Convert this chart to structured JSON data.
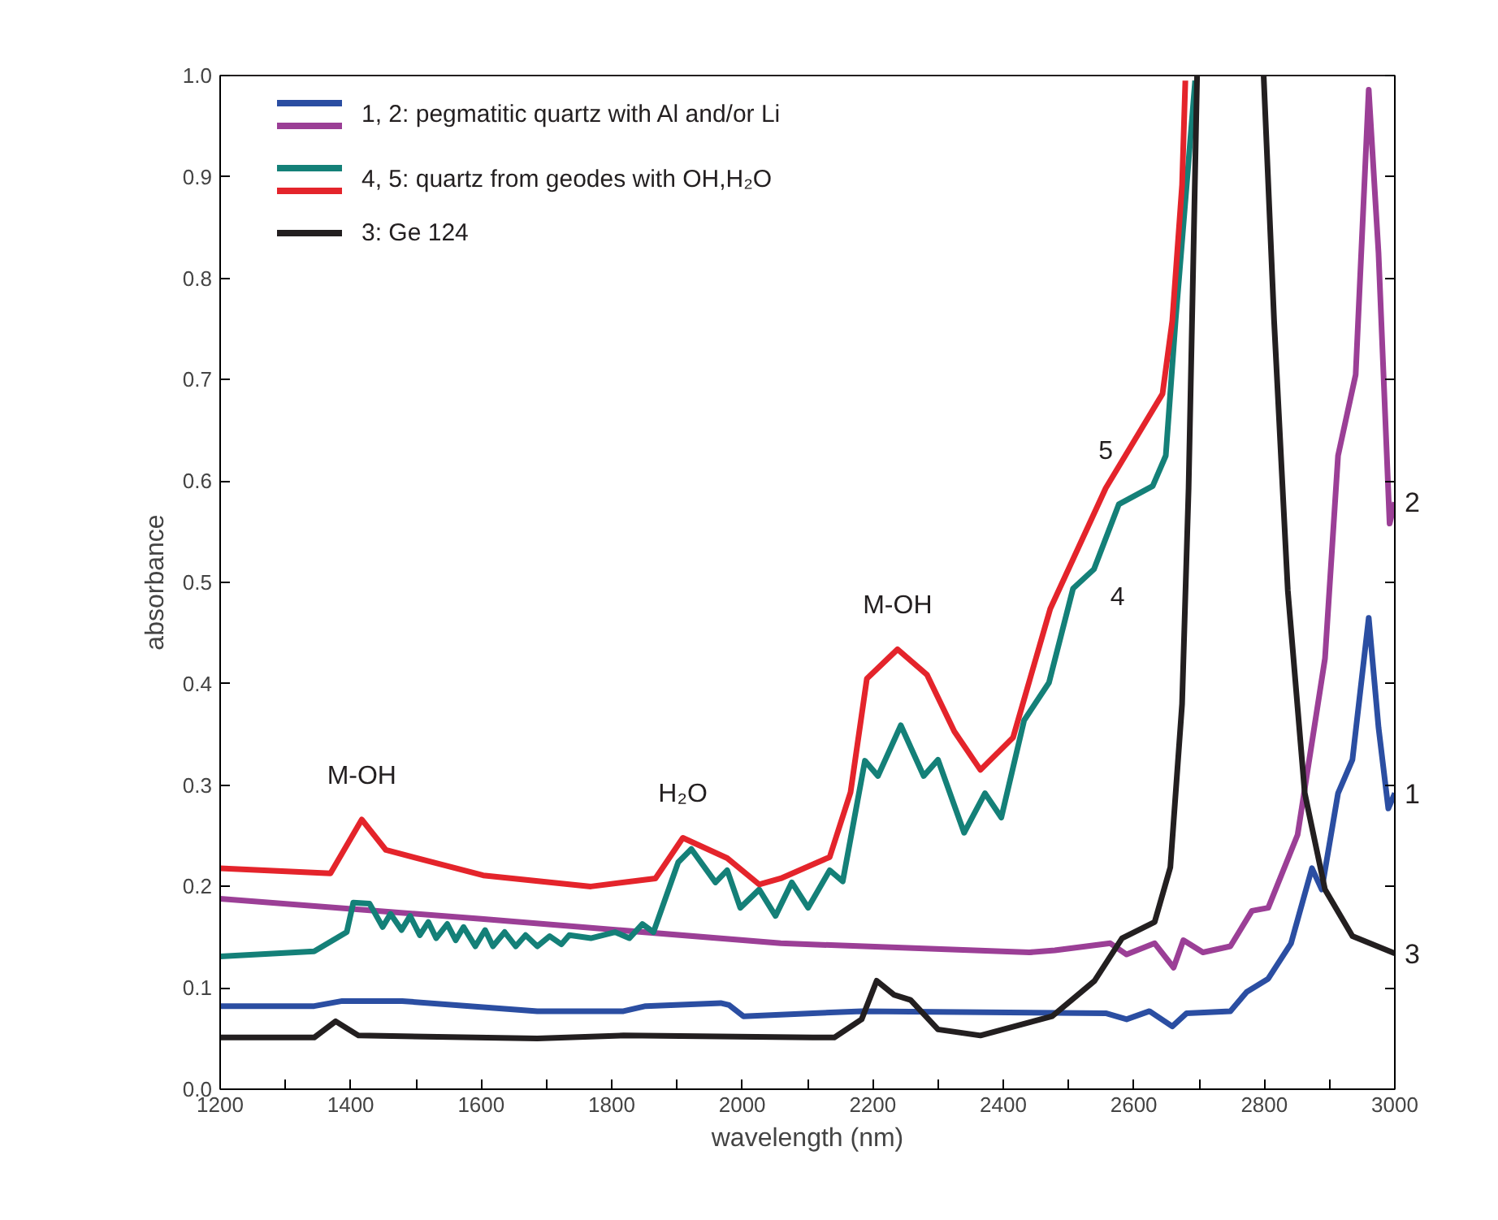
{
  "chart_data": {
    "type": "line",
    "xlabel": "wavelength (nm)",
    "ylabel": "absorbance",
    "xlim": [
      1200,
      3000
    ],
    "ylim": [
      0,
      1.0
    ],
    "xticks": [
      1200,
      {
        "value": 1300,
        "label": null
      },
      1400,
      {
        "value": 1500,
        "label": null
      },
      1600,
      {
        "value": 1700,
        "label": null
      },
      1800,
      {
        "value": 1900,
        "label": null
      },
      2000,
      {
        "value": 2100,
        "label": null
      },
      2200,
      {
        "value": 2300,
        "label": null
      },
      2400,
      {
        "value": 2500,
        "label": null
      },
      2600,
      {
        "value": 2700,
        "label": null
      },
      2800,
      {
        "value": 2900,
        "label": null
      },
      3000
    ],
    "yticks": [
      {
        "value": 0,
        "label": "0.0"
      },
      0.1,
      0.2,
      0.3,
      0.4,
      0.5,
      0.6,
      0.7,
      0.8,
      0.9,
      {
        "value": 1.0,
        "label": "1.0"
      }
    ],
    "grid": false,
    "legend": "top left",
    "marker": "none",
    "line_style": "solid",
    "series": [
      {
        "name": "1, 2: pegmatitic quartz with Al and/or Li",
        "color": "#2b4ea2",
        "x": [
          1200,
          1344,
          1387,
          1479,
          1686,
          1818,
          1852,
          1967,
          1980,
          2002,
          2108,
          2183,
          2557,
          2589,
          2624,
          2659,
          2681,
          2748,
          2773,
          2806,
          2841,
          2873,
          2888,
          2913,
          2935,
          2960,
          2975,
          2990,
          3000
        ],
        "values": [
          0.082,
          0.082,
          0.087,
          0.087,
          0.077,
          0.077,
          0.082,
          0.085,
          0.083,
          0.072,
          0.075,
          0.077,
          0.075,
          0.069,
          0.077,
          0.062,
          0.075,
          0.077,
          0.096,
          0.109,
          0.144,
          0.218,
          0.197,
          0.292,
          0.325,
          0.465,
          0.357,
          0.277,
          0.292
        ]
      },
      {
        "color": "#9b3f96",
        "x": [
          1200,
          1600,
          2059,
          2440,
          2479,
          2564,
          2589,
          2632,
          2661,
          2676,
          2706,
          2748,
          2781,
          2806,
          2851,
          2893,
          2913,
          2940,
          2960,
          2975,
          2992,
          3000
        ],
        "values": [
          0.188,
          0.168,
          0.144,
          0.135,
          0.137,
          0.144,
          0.133,
          0.144,
          0.12,
          0.147,
          0.135,
          0.141,
          0.176,
          0.179,
          0.251,
          0.425,
          0.625,
          0.705,
          0.986,
          0.825,
          0.558,
          0.579
        ]
      },
      {
        "name": "4, 5: quartz from geodes with OH,H₂O",
        "color": "#148078",
        "x": [
          1200,
          1344,
          1394,
          1404,
          1429,
          1449,
          1461,
          1478,
          1491,
          1506,
          1519,
          1531,
          1548,
          1561,
          1573,
          1591,
          1606,
          1618,
          1636,
          1653,
          1668,
          1686,
          1705,
          1723,
          1735,
          1768,
          1805,
          1827,
          1847,
          1864,
          1902,
          1922,
          1959,
          1977,
          1997,
          2026,
          2051,
          2076,
          2101,
          2134,
          2154,
          2188,
          2208,
          2243,
          2278,
          2300,
          2340,
          2372,
          2397,
          2432,
          2470,
          2507,
          2539,
          2577,
          2629,
          2649,
          2664,
          2681,
          2694
        ],
        "values": [
          0.131,
          0.136,
          0.155,
          0.184,
          0.183,
          0.16,
          0.173,
          0.157,
          0.171,
          0.152,
          0.165,
          0.149,
          0.163,
          0.147,
          0.16,
          0.141,
          0.157,
          0.141,
          0.155,
          0.141,
          0.152,
          0.141,
          0.151,
          0.143,
          0.152,
          0.149,
          0.155,
          0.149,
          0.163,
          0.155,
          0.224,
          0.237,
          0.204,
          0.216,
          0.179,
          0.197,
          0.171,
          0.204,
          0.179,
          0.216,
          0.205,
          0.324,
          0.309,
          0.359,
          0.309,
          0.325,
          0.253,
          0.292,
          0.268,
          0.364,
          0.401,
          0.494,
          0.513,
          0.577,
          0.595,
          0.625,
          0.758,
          0.892,
          0.995
        ]
      },
      {
        "color": "#e4242b",
        "x": [
          1200,
          1369,
          1417,
          1454,
          1603,
          1768,
          1867,
          1909,
          1977,
          2026,
          2059,
          2134,
          2166,
          2191,
          2238,
          2283,
          2325,
          2365,
          2415,
          2472,
          2557,
          2644,
          2659,
          2674,
          2679
        ],
        "values": [
          0.218,
          0.213,
          0.266,
          0.236,
          0.211,
          0.2,
          0.208,
          0.248,
          0.228,
          0.202,
          0.208,
          0.229,
          0.293,
          0.405,
          0.434,
          0.409,
          0.353,
          0.315,
          0.347,
          0.474,
          0.593,
          0.686,
          0.758,
          0.892,
          0.995
        ]
      },
      {
        "name": "3: Ge 124",
        "color": "#231f20",
        "x": [
          1200,
          1344,
          1377,
          1412,
          1686,
          1818,
          2108,
          2141,
          2183,
          2206,
          2233,
          2258,
          2300,
          2365,
          2475,
          2540,
          2582,
          2632,
          2656,
          2674,
          2684,
          2697,
          2750,
          2799,
          2815,
          2836,
          2862,
          2893,
          2935,
          3000
        ],
        "values": [
          0.051,
          0.051,
          0.067,
          0.053,
          0.05,
          0.053,
          0.051,
          0.051,
          0.069,
          0.107,
          0.093,
          0.088,
          0.059,
          0.053,
          0.072,
          0.107,
          0.149,
          0.165,
          0.219,
          0.38,
          0.593,
          1.0,
          null,
          1.0,
          0.758,
          0.492,
          0.292,
          0.197,
          0.151,
          0.134
        ]
      }
    ],
    "annotations": [
      {
        "text": "M-OH",
        "x": 1417,
        "y": 0.266
      },
      {
        "text": "H₂O",
        "x": 1909,
        "y": 0.248
      },
      {
        "text": "M-OH",
        "x": 2238,
        "y": 0.434
      },
      {
        "text": "5",
        "x": 2557,
        "y": 0.593
      },
      {
        "text": "4",
        "x": 2539,
        "y": 0.513
      },
      {
        "text": "2",
        "x": 3000,
        "y": 0.579
      },
      {
        "text": "1",
        "x": 3000,
        "y": 0.292
      },
      {
        "text": "3",
        "x": 3000,
        "y": 0.134
      }
    ]
  }
}
